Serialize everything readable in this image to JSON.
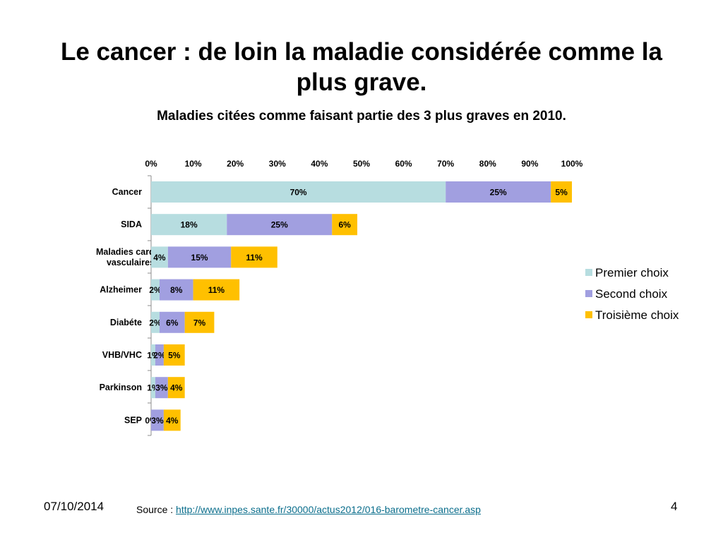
{
  "slide": {
    "title": "Le cancer : de loin la maladie considérée comme la plus grave.",
    "date": "07/10/2014",
    "page_number": "4",
    "source_label": "Source : ",
    "source_url": "http://www.inpes.sante.fr/30000/actus2012/016-barometre-cancer.asp"
  },
  "chart_data": {
    "type": "bar",
    "orientation": "horizontal",
    "stacked": true,
    "title": "Maladies citées comme faisant partie des 3 plus graves en 2010.",
    "categories": [
      "Cancer",
      "SIDA",
      "Maladies cardio-\nvasculaires",
      "Alzheimer",
      "Diabéte",
      "VHB/VHC",
      "Parkinson",
      "SEP"
    ],
    "series": [
      {
        "name": "Premier choix",
        "color": "#b7dde0",
        "values": [
          70,
          18,
          4,
          2,
          2,
          1,
          1,
          0
        ]
      },
      {
        "name": "Second choix",
        "color": "#a19fe0",
        "values": [
          25,
          25,
          15,
          8,
          6,
          2,
          3,
          3
        ]
      },
      {
        "name": "Troisième choix",
        "color": "#ffc000",
        "values": [
          5,
          6,
          11,
          11,
          7,
          5,
          4,
          4
        ]
      }
    ],
    "x_axis": {
      "min": 0,
      "max": 100,
      "tick_step": 10,
      "tick_labels": [
        "0%",
        "10%",
        "20%",
        "30%",
        "40%",
        "50%",
        "60%",
        "70%",
        "80%",
        "90%",
        "100%"
      ],
      "position": "top"
    },
    "value_suffix": "%",
    "legend_position": "right",
    "grid": false
  }
}
